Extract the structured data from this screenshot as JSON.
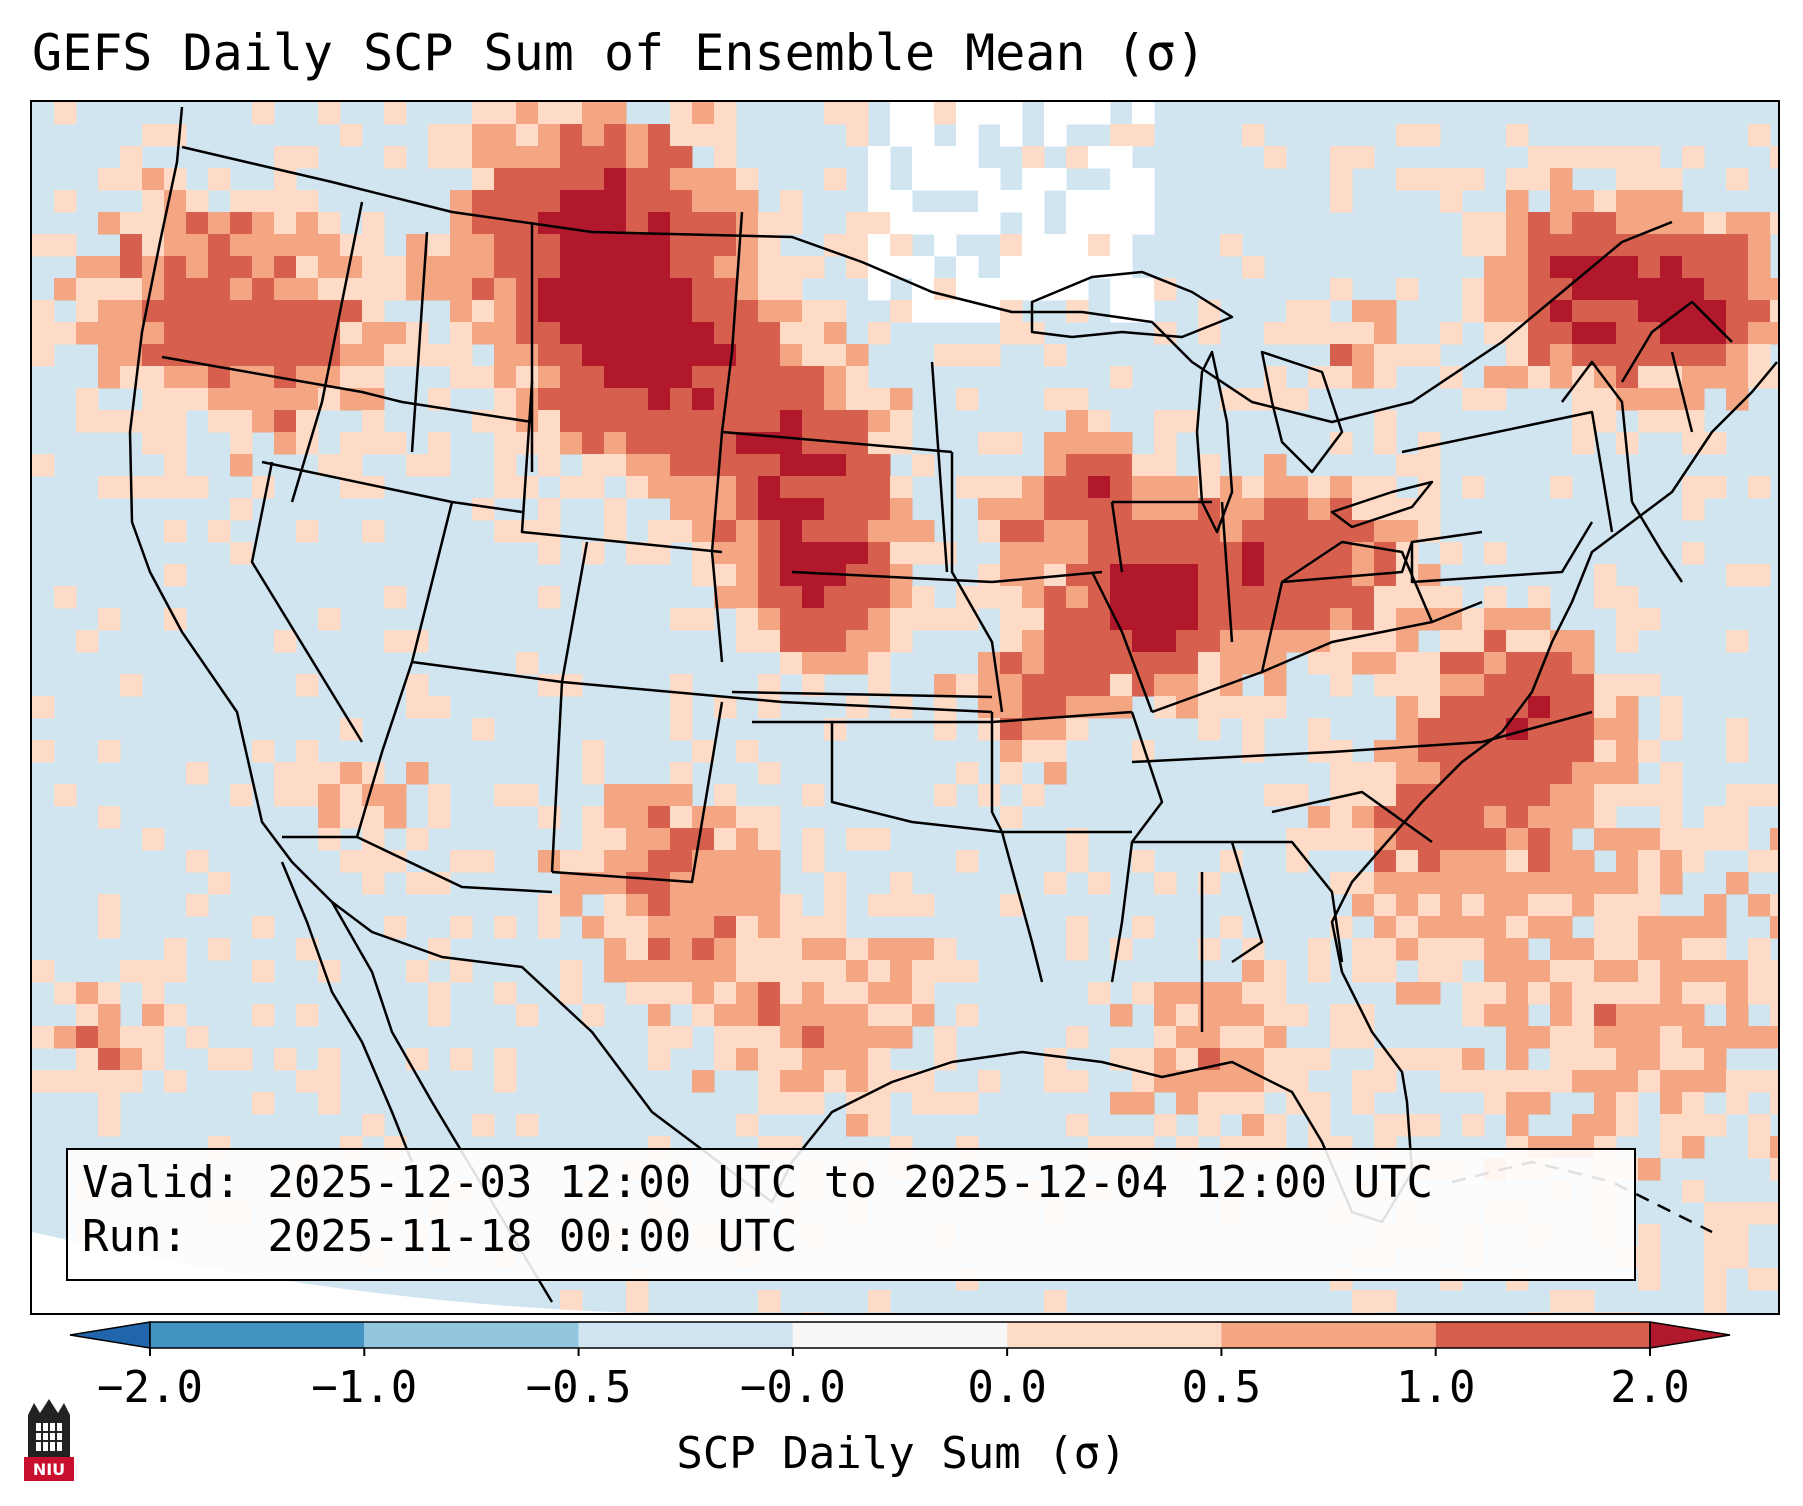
{
  "title": "GEFS Daily SCP Sum of Ensemble Mean (σ)",
  "valid_box": {
    "valid_line": "Valid: 2025-12-03 12:00 UTC to 2025-12-04 12:00 UTC",
    "run_line": "Run:   2025-11-18 00:00 UTC"
  },
  "colorbar": {
    "label": "SCP Daily Sum (σ)",
    "ticks": [
      "−2.0",
      "−1.0",
      "−0.5",
      "−0.0",
      "0.0",
      "0.5",
      "1.0",
      "2.0"
    ],
    "bins": [
      {
        "range": "< -2.0",
        "color": "#2166ac"
      },
      {
        "range": "-2.0 to -1.0",
        "color": "#4393c3"
      },
      {
        "range": "-1.0 to -0.5",
        "color": "#92c5de"
      },
      {
        "range": "-0.5 to -0.0",
        "color": "#d1e5f0"
      },
      {
        "range": "-0.0 to 0.0",
        "color": "#f7f7f7"
      },
      {
        "range": "0.0 to 0.5",
        "color": "#fddbc7"
      },
      {
        "range": "0.5 to 1.0",
        "color": "#f4a582"
      },
      {
        "range": "1.0 to 2.0",
        "color": "#d6604d"
      },
      {
        "range": "> 2.0",
        "color": "#b2182b"
      }
    ]
  },
  "map": {
    "region": "Continental United States",
    "cell_colors": {
      "neg_low": "#d1e5f0",
      "neg_mid": "#92c5de",
      "neutral": "#ffffff",
      "pos_low": "#fddbc7",
      "pos_mid": "#f4a582",
      "pos_high": "#d6604d",
      "pos_max": "#b2182b"
    }
  },
  "logo": {
    "text": "NIU"
  }
}
